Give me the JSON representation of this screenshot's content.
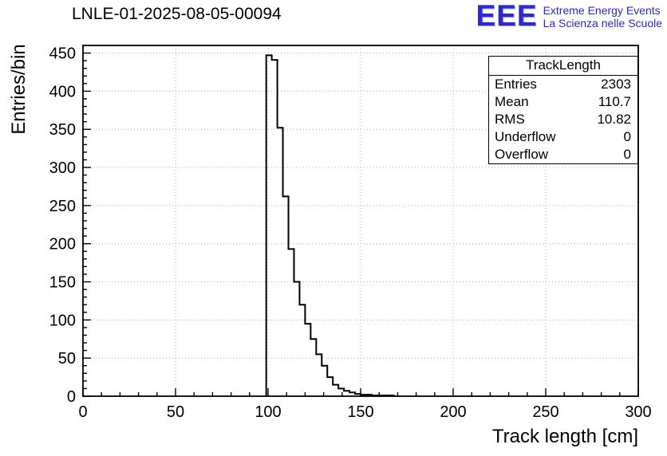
{
  "title": "LNLE-01-2025-08-05-00094",
  "logo": {
    "acronym": "EEE",
    "line1": "Extreme Energy Events",
    "line2": "La Scienza nelle Scuole",
    "color": "#2a2ad0"
  },
  "stats": {
    "title": "TrackLength",
    "rows": [
      {
        "label": "Entries",
        "value": "2303"
      },
      {
        "label": "Mean",
        "value": "110.7"
      },
      {
        "label": "RMS",
        "value": "10.82"
      },
      {
        "label": "Underflow",
        "value": "0"
      },
      {
        "label": "Overflow",
        "value": "0"
      }
    ]
  },
  "chart_data": {
    "type": "bar",
    "subtype": "step-histogram",
    "title": "LNLE-01-2025-08-05-00094",
    "xlabel": "Track length [cm]",
    "ylabel": "Entries/bin",
    "xlim": [
      0,
      300
    ],
    "ylim": [
      0,
      460
    ],
    "xticks": [
      0,
      50,
      100,
      150,
      200,
      250,
      300
    ],
    "yticks": [
      0,
      50,
      100,
      150,
      200,
      250,
      300,
      350,
      400,
      450
    ],
    "x_minor_step": 10,
    "y_minor_step": 10,
    "grid": true,
    "bin_start": 99,
    "bin_width": 3,
    "counts": [
      447,
      441,
      352,
      262,
      193,
      150,
      120,
      95,
      75,
      55,
      40,
      25,
      15,
      10,
      7,
      5,
      3,
      2,
      2,
      1,
      1,
      1,
      1
    ],
    "entries_total": 2303,
    "line_color": "#000000",
    "grid_color": "#b4b4b4",
    "axis_color": "#000000",
    "legend_position": "top-right-stats-box"
  }
}
